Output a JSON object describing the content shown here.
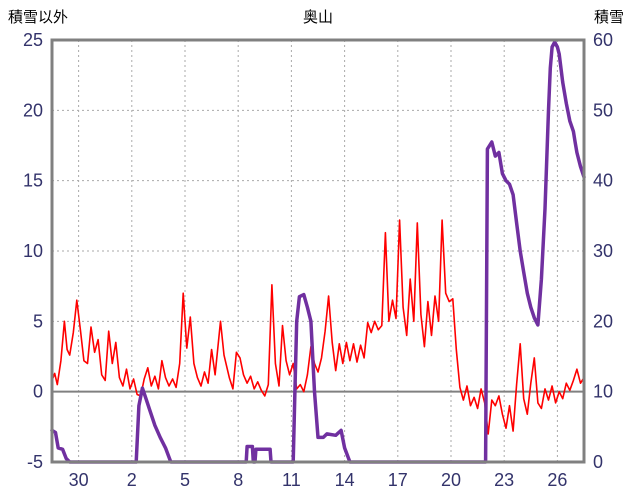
{
  "header": {
    "left_axis_title": "積雪以外",
    "title": "奥山",
    "right_axis_title": "積雪"
  },
  "chart_data": {
    "type": "line",
    "title": "奥山",
    "left_axis": {
      "title": "積雪以外",
      "min": -5,
      "max": 25,
      "ticks": [
        25,
        20,
        15,
        10,
        5,
        0,
        -5
      ],
      "grid_values": [
        5,
        10,
        15,
        20
      ],
      "zero_line_value": 0
    },
    "right_axis": {
      "title": "積雪",
      "min": 0,
      "max": 60,
      "ticks": [
        60,
        50,
        40,
        30,
        20,
        10,
        0
      ]
    },
    "x_axis": {
      "min": 0,
      "max": 30,
      "ticks": [
        {
          "day": 1.5,
          "label": "30"
        },
        {
          "day": 4.5,
          "label": "2"
        },
        {
          "day": 7.5,
          "label": "5"
        },
        {
          "day": 10.5,
          "label": "8"
        },
        {
          "day": 13.5,
          "label": "11"
        },
        {
          "day": 16.5,
          "label": "14"
        },
        {
          "day": 19.5,
          "label": "17"
        },
        {
          "day": 22.5,
          "label": "20"
        },
        {
          "day": 25.5,
          "label": "23"
        },
        {
          "day": 28.5,
          "label": "26"
        }
      ]
    },
    "series": [
      {
        "name": "積雪以外",
        "axis": "left",
        "color": "#ff0000",
        "width": 1.6,
        "points": [
          [
            0,
            0.8
          ],
          [
            0.15,
            1.3
          ],
          [
            0.3,
            0.5
          ],
          [
            0.5,
            2.2
          ],
          [
            0.7,
            5.0
          ],
          [
            0.85,
            3.0
          ],
          [
            1.0,
            2.6
          ],
          [
            1.2,
            4.2
          ],
          [
            1.4,
            6.5
          ],
          [
            1.6,
            4.4
          ],
          [
            1.8,
            2.2
          ],
          [
            2.0,
            2.0
          ],
          [
            2.2,
            4.6
          ],
          [
            2.4,
            2.8
          ],
          [
            2.6,
            3.7
          ],
          [
            2.8,
            1.2
          ],
          [
            3.0,
            0.8
          ],
          [
            3.2,
            4.3
          ],
          [
            3.4,
            2.0
          ],
          [
            3.6,
            3.5
          ],
          [
            3.8,
            1.0
          ],
          [
            4.0,
            0.4
          ],
          [
            4.2,
            1.6
          ],
          [
            4.4,
            0.2
          ],
          [
            4.6,
            0.9
          ],
          [
            4.8,
            -0.2
          ],
          [
            5.0,
            -0.3
          ],
          [
            5.2,
            0.9
          ],
          [
            5.4,
            1.7
          ],
          [
            5.6,
            0.4
          ],
          [
            5.8,
            1.1
          ],
          [
            6.0,
            0.2
          ],
          [
            6.2,
            2.2
          ],
          [
            6.4,
            1.0
          ],
          [
            6.6,
            0.4
          ],
          [
            6.8,
            0.9
          ],
          [
            7.0,
            0.3
          ],
          [
            7.2,
            2.0
          ],
          [
            7.4,
            7.0
          ],
          [
            7.6,
            3.1
          ],
          [
            7.8,
            5.3
          ],
          [
            8.0,
            2.0
          ],
          [
            8.2,
            1.0
          ],
          [
            8.4,
            0.4
          ],
          [
            8.6,
            1.4
          ],
          [
            8.8,
            0.6
          ],
          [
            9.0,
            3.0
          ],
          [
            9.2,
            1.2
          ],
          [
            9.5,
            5.0
          ],
          [
            9.7,
            2.6
          ],
          [
            10.0,
            1.0
          ],
          [
            10.2,
            0.2
          ],
          [
            10.4,
            2.8
          ],
          [
            10.6,
            2.4
          ],
          [
            10.8,
            1.2
          ],
          [
            11.0,
            0.6
          ],
          [
            11.2,
            1.1
          ],
          [
            11.4,
            0.2
          ],
          [
            11.6,
            0.7
          ],
          [
            11.8,
            0.1
          ],
          [
            12.0,
            -0.3
          ],
          [
            12.2,
            0.5
          ],
          [
            12.4,
            7.6
          ],
          [
            12.6,
            2.0
          ],
          [
            12.8,
            0.4
          ],
          [
            13.0,
            4.7
          ],
          [
            13.2,
            2.2
          ],
          [
            13.4,
            1.2
          ],
          [
            13.6,
            2.0
          ],
          [
            13.8,
            0.2
          ],
          [
            14.0,
            0.5
          ],
          [
            14.2,
            0.0
          ],
          [
            14.4,
            1.2
          ],
          [
            14.6,
            3.2
          ],
          [
            14.8,
            2.0
          ],
          [
            15.0,
            1.4
          ],
          [
            15.2,
            2.4
          ],
          [
            15.4,
            4.3
          ],
          [
            15.6,
            6.8
          ],
          [
            15.8,
            3.5
          ],
          [
            16.0,
            1.5
          ],
          [
            16.2,
            3.4
          ],
          [
            16.4,
            2.0
          ],
          [
            16.6,
            3.5
          ],
          [
            16.8,
            2.2
          ],
          [
            17.0,
            3.4
          ],
          [
            17.2,
            2.1
          ],
          [
            17.4,
            3.3
          ],
          [
            17.6,
            2.4
          ],
          [
            17.8,
            4.9
          ],
          [
            18.0,
            4.2
          ],
          [
            18.2,
            5.0
          ],
          [
            18.4,
            4.4
          ],
          [
            18.6,
            4.7
          ],
          [
            18.8,
            11.3
          ],
          [
            19.0,
            5.0
          ],
          [
            19.2,
            6.5
          ],
          [
            19.4,
            5.2
          ],
          [
            19.6,
            12.2
          ],
          [
            19.8,
            6.0
          ],
          [
            20.0,
            4.0
          ],
          [
            20.2,
            8.0
          ],
          [
            20.4,
            5.0
          ],
          [
            20.6,
            12.0
          ],
          [
            20.8,
            5.5
          ],
          [
            21.0,
            3.2
          ],
          [
            21.2,
            6.4
          ],
          [
            21.4,
            4.0
          ],
          [
            21.6,
            6.8
          ],
          [
            21.8,
            5.0
          ],
          [
            22.0,
            12.2
          ],
          [
            22.2,
            7.0
          ],
          [
            22.4,
            6.4
          ],
          [
            22.6,
            6.6
          ],
          [
            22.8,
            3.0
          ],
          [
            23.0,
            0.3
          ],
          [
            23.2,
            -0.6
          ],
          [
            23.4,
            0.4
          ],
          [
            23.6,
            -1.0
          ],
          [
            23.8,
            -0.4
          ],
          [
            24.0,
            -1.2
          ],
          [
            24.2,
            0.2
          ],
          [
            24.4,
            -0.8
          ],
          [
            24.6,
            -3.0
          ],
          [
            24.8,
            -0.6
          ],
          [
            25.0,
            -1.0
          ],
          [
            25.2,
            -0.3
          ],
          [
            25.4,
            -1.6
          ],
          [
            25.6,
            -2.6
          ],
          [
            25.8,
            -1.0
          ],
          [
            26.0,
            -2.8
          ],
          [
            26.2,
            0.5
          ],
          [
            26.4,
            3.4
          ],
          [
            26.6,
            -0.5
          ],
          [
            26.8,
            -1.6
          ],
          [
            27.0,
            0.6
          ],
          [
            27.2,
            2.4
          ],
          [
            27.4,
            -0.8
          ],
          [
            27.6,
            -1.2
          ],
          [
            27.8,
            0.2
          ],
          [
            28.0,
            -0.6
          ],
          [
            28.2,
            0.4
          ],
          [
            28.4,
            -0.8
          ],
          [
            28.6,
            0.0
          ],
          [
            28.8,
            -0.5
          ],
          [
            29.0,
            0.6
          ],
          [
            29.2,
            0.1
          ],
          [
            29.4,
            0.8
          ],
          [
            29.6,
            1.6
          ],
          [
            29.8,
            0.6
          ],
          [
            30.0,
            1.0
          ]
        ]
      },
      {
        "name": "積雪",
        "axis": "right",
        "color": "#7030a0",
        "width": 3.5,
        "points": [
          [
            0,
            4.5
          ],
          [
            0.2,
            4.2
          ],
          [
            0.35,
            2.0
          ],
          [
            0.6,
            1.8
          ],
          [
            0.8,
            0.5
          ],
          [
            1.0,
            0
          ],
          [
            4.75,
            0
          ],
          [
            4.9,
            8.0
          ],
          [
            5.1,
            10.5
          ],
          [
            5.3,
            9.0
          ],
          [
            5.5,
            7.5
          ],
          [
            5.8,
            5.2
          ],
          [
            6.1,
            3.5
          ],
          [
            6.4,
            2.0
          ],
          [
            6.7,
            0
          ],
          [
            10.95,
            0
          ],
          [
            11.0,
            2.2
          ],
          [
            11.3,
            2.2
          ],
          [
            11.35,
            0
          ],
          [
            11.45,
            0
          ],
          [
            11.5,
            1.8
          ],
          [
            12.3,
            1.8
          ],
          [
            12.35,
            0
          ],
          [
            13.6,
            0
          ],
          [
            13.7,
            10.0
          ],
          [
            13.8,
            20.0
          ],
          [
            13.95,
            23.5
          ],
          [
            14.2,
            23.8
          ],
          [
            14.4,
            22.0
          ],
          [
            14.6,
            20.0
          ],
          [
            14.8,
            10.0
          ],
          [
            15.0,
            3.5
          ],
          [
            15.3,
            3.5
          ],
          [
            15.5,
            4.0
          ],
          [
            16.0,
            3.8
          ],
          [
            16.3,
            4.5
          ],
          [
            16.5,
            2.0
          ],
          [
            16.8,
            0
          ],
          [
            24.45,
            0
          ],
          [
            24.55,
            44.5
          ],
          [
            24.8,
            45.5
          ],
          [
            25.0,
            43.5
          ],
          [
            25.2,
            44.0
          ],
          [
            25.4,
            41.0
          ],
          [
            25.6,
            40.0
          ],
          [
            25.8,
            39.5
          ],
          [
            26.0,
            38.0
          ],
          [
            26.2,
            34.0
          ],
          [
            26.4,
            30.0
          ],
          [
            26.6,
            27.0
          ],
          [
            26.8,
            24.0
          ],
          [
            27.0,
            22.0
          ],
          [
            27.2,
            20.5
          ],
          [
            27.4,
            19.5
          ],
          [
            27.6,
            26.0
          ],
          [
            27.8,
            36.0
          ],
          [
            28.0,
            50.0
          ],
          [
            28.1,
            56.0
          ],
          [
            28.2,
            59.0
          ],
          [
            28.35,
            59.7
          ],
          [
            28.5,
            59.0
          ],
          [
            28.6,
            58.0
          ],
          [
            28.8,
            54.0
          ],
          [
            29.0,
            51.0
          ],
          [
            29.2,
            48.5
          ],
          [
            29.4,
            47.0
          ],
          [
            29.5,
            45.5
          ],
          [
            29.6,
            44.0
          ],
          [
            29.8,
            42.0
          ],
          [
            30.0,
            40.5
          ]
        ]
      }
    ],
    "style": {
      "frame_color": "#808080",
      "frame_width": 3,
      "grid_color": "#aaaaaa",
      "grid_dash": "2,3",
      "zero_line_color": "#808080",
      "zero_line_width": 2,
      "label_color": "#33336b",
      "background": "#ffffff"
    }
  }
}
